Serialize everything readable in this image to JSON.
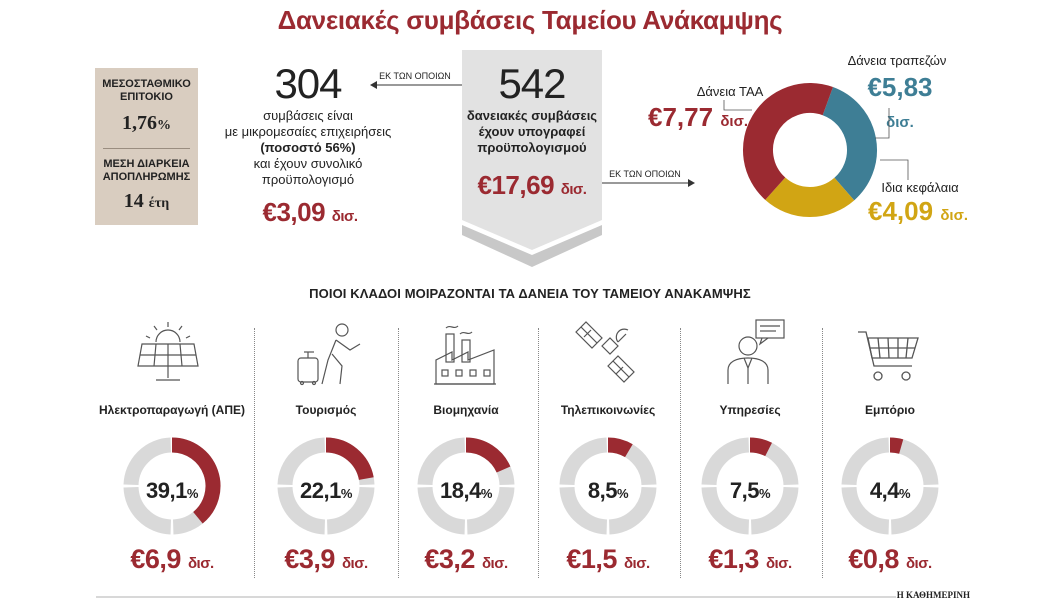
{
  "title": "Δανειακές συμβάσεις Ταμείου Ανάκαμψης",
  "info_box": {
    "rate_label": "ΜΕΣΟΣΤΑΘΜΙΚΟ ΕΠΙΤΟΚΙΟ",
    "rate_value": "1,76",
    "rate_unit": "%",
    "duration_label": "ΜΕΣΗ ΔΙΑΡΚΕΙΑ ΑΠΟΠΛΗΡΩΜΗΣ",
    "duration_value": "14",
    "duration_unit": "έτη"
  },
  "sme": {
    "count": "304",
    "connector": "ΕΚ ΤΩΝ ΟΠΟΙΩΝ",
    "text_1": "συμβάσεις είναι",
    "text_2": "με μικρομεσαίες επιχειρήσεις",
    "text_3": "(ποσοστό 56%)",
    "text_4": "και έχουν συνολικό",
    "text_5": "προϋπολογισμό",
    "amount": "€3,09",
    "amount_unit": "δισ."
  },
  "total": {
    "count": "542",
    "text_1": "δανειακές συμβάσεις",
    "text_2": "έχουν υπογραφεί",
    "text_3": "προϋπολογισμού",
    "amount": "€17,69",
    "amount_unit": "δισ.",
    "connector": "ΕΚ ΤΩΝ ΟΠΟΙΩΝ"
  },
  "section_title": "ΠΟΙΟΙ ΚΛΑΔΟΙ ΜΟΙΡΑΖΟΝΤΑΙ ΤΑ ΔΑΝΕΙΑ ΤΟΥ ΤΑΜΕΙΟΥ ΑΝΑΚΑΜΨΗΣ",
  "footer": "Η ΚΑΘΗΜΕΡΙΝΗ",
  "colors": {
    "red": "#9b2a31",
    "blue": "#3e7e95",
    "gold": "#d1a514",
    "grey_ring": "#d9d9d9"
  },
  "chart_data": [
    {
      "type": "pie",
      "subtype": "donut",
      "categories": [
        "Δάνεια τραπεζών",
        "Ιδια κεφάλαια",
        "Δάνεια ΤΑΑ"
      ],
      "values": [
        5.83,
        4.09,
        7.77
      ],
      "value_labels": [
        "€5,83",
        "€4,09",
        "€7,77"
      ],
      "unit": "δισ.",
      "colors": [
        "#3e7e95",
        "#d1a514",
        "#9b2a31"
      ]
    },
    {
      "type": "pie",
      "subtype": "donut",
      "series": [
        {
          "name": "Ηλεκτροπαραγωγή (ΑΠΕ)",
          "percent": 39.1,
          "percent_label": "39,1",
          "amount": "€6,9",
          "icon": "solar-panel-icon"
        },
        {
          "name": "Τουρισμός",
          "percent": 22.1,
          "percent_label": "22,1",
          "amount": "€3,9",
          "icon": "traveler-icon"
        },
        {
          "name": "Βιομηχανία",
          "percent": 18.4,
          "percent_label": "18,4",
          "amount": "€3,2",
          "icon": "factory-icon"
        },
        {
          "name": "Τηλεπικοινωνίες",
          "percent": 8.5,
          "percent_label": "8,5",
          "amount": "€1,5",
          "icon": "satellite-icon"
        },
        {
          "name": "Υπηρεσίες",
          "percent": 7.5,
          "percent_label": "7,5",
          "amount": "€1,3",
          "icon": "consultant-icon"
        },
        {
          "name": "Εμπόριο",
          "percent": 4.4,
          "percent_label": "4,4",
          "amount": "€0,8",
          "icon": "shopping-cart-icon"
        }
      ],
      "percent_unit": "%",
      "amount_unit": "δισ."
    }
  ]
}
